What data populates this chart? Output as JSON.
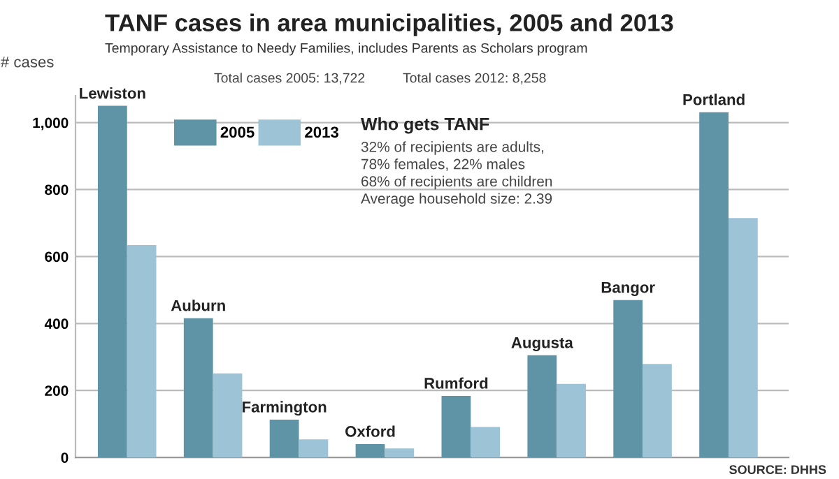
{
  "chart_data": {
    "type": "bar",
    "title": "TANF cases in area municipalities, 2005 and 2013",
    "subtitle": "Temporary Assistance to Needy Families, includes Parents as Scholars program",
    "ylabel": "# cases",
    "categories": [
      "Lewiston",
      "Auburn",
      "Farmington",
      "Oxford",
      "Rumford",
      "Augusta",
      "Bangor",
      "Portland"
    ],
    "series": [
      {
        "name": "2005",
        "color": "#5f93a6",
        "values": [
          1050,
          416,
          113,
          40,
          184,
          305,
          470,
          1031
        ]
      },
      {
        "name": "2013",
        "color": "#9dc3d6",
        "values": [
          634,
          251,
          54,
          27,
          91,
          220,
          279,
          715
        ]
      }
    ],
    "ylim": [
      0,
      1080
    ],
    "yticks": [
      0,
      200,
      400,
      600,
      800,
      {
        "value": 1000,
        "label": "1,000"
      }
    ],
    "grid": "y",
    "legend": "top left",
    "tick_labels": "y",
    "annotations": [
      "Total cases 2005: 13,722",
      "Total cases 2012: 8,258",
      "Who gets TANF\n32% of recipients are adults,\n78% females, 22% males\n68% of recipients are children\nAverage household size: 2.39",
      "SOURCE: DHHS"
    ]
  }
}
